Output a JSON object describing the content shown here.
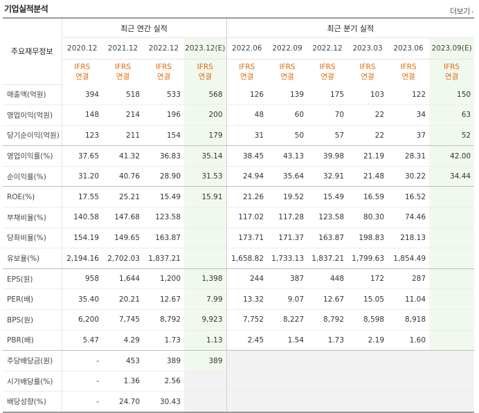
{
  "title": "기업실적분석",
  "more_label": "더보기",
  "header": {
    "row_label": "주요재무정보",
    "annual_group": "최근 연간 실적",
    "quarter_group": "최근 분기 실적",
    "annual_periods": [
      "2020.12",
      "2021.12",
      "2022.12",
      "2023.12(E)"
    ],
    "quarter_periods": [
      "2022.06",
      "2022.09",
      "2022.12",
      "2023.03",
      "2023.06",
      "2023.09(E)"
    ],
    "basis_top": "IFRS",
    "basis_bottom": "연결"
  },
  "rows": [
    {
      "label": "매출액(억원)",
      "values": [
        "394",
        "518",
        "533",
        "568",
        "126",
        "139",
        "175",
        "103",
        "122",
        "150"
      ]
    },
    {
      "label": "영업이익(억원)",
      "values": [
        "148",
        "214",
        "196",
        "200",
        "48",
        "60",
        "70",
        "22",
        "34",
        "63"
      ]
    },
    {
      "label": "당기순이익(억원)",
      "values": [
        "123",
        "211",
        "154",
        "179",
        "31",
        "50",
        "57",
        "22",
        "37",
        "52"
      ]
    },
    {
      "label": "영업이익률(%)",
      "values": [
        "37.65",
        "41.32",
        "36.83",
        "35.14",
        "38.45",
        "43.13",
        "39.98",
        "21.19",
        "28.31",
        "42.00"
      ]
    },
    {
      "label": "순이익률(%)",
      "values": [
        "31.20",
        "40.76",
        "28.90",
        "31.53",
        "24.94",
        "35.64",
        "32.91",
        "21.48",
        "30.22",
        "34.44"
      ]
    },
    {
      "label": "ROE(%)",
      "values": [
        "17.55",
        "25.21",
        "15.49",
        "15.91",
        "21.26",
        "19.52",
        "15.49",
        "16.59",
        "16.52",
        ""
      ]
    },
    {
      "label": "부채비율(%)",
      "values": [
        "140.58",
        "147.68",
        "123.58",
        "",
        "117.02",
        "117.28",
        "123.58",
        "80.30",
        "74.46",
        ""
      ]
    },
    {
      "label": "당좌비율(%)",
      "values": [
        "154.19",
        "149.65",
        "163.87",
        "",
        "173.71",
        "171.37",
        "163.87",
        "198.83",
        "218.13",
        ""
      ]
    },
    {
      "label": "유보율(%)",
      "values": [
        "2,194.16",
        "2,702.03",
        "1,837.21",
        "",
        "1,658.82",
        "1,733.13",
        "1,837.21",
        "1,799.63",
        "1,854.49",
        ""
      ]
    },
    {
      "label": "EPS(원)",
      "values": [
        "958",
        "1,644",
        "1,200",
        "1,398",
        "244",
        "387",
        "448",
        "172",
        "287",
        ""
      ]
    },
    {
      "label": "PER(배)",
      "values": [
        "35.40",
        "20.21",
        "12.67",
        "7.99",
        "13.32",
        "9.07",
        "12.67",
        "15.05",
        "11.04",
        ""
      ]
    },
    {
      "label": "BPS(원)",
      "values": [
        "6,200",
        "7,745",
        "8,792",
        "9,923",
        "7,752",
        "8,227",
        "8,792",
        "8,598",
        "8,918",
        ""
      ]
    },
    {
      "label": "PBR(배)",
      "values": [
        "5.47",
        "4.29",
        "1.73",
        "1.13",
        "2.45",
        "1.54",
        "1.73",
        "2.19",
        "1.60",
        ""
      ]
    },
    {
      "label": "주당배당금(원)",
      "values": [
        "-",
        "453",
        "389",
        "389",
        "",
        "",
        "",
        "",
        "",
        ""
      ]
    },
    {
      "label": "시가배당률(%)",
      "values": [
        "-",
        "1.36",
        "2.56",
        "",
        "",
        "",
        "",
        "",
        "",
        ""
      ]
    },
    {
      "label": "배당성향(%)",
      "values": [
        "-",
        "24.70",
        "30.43",
        "",
        "",
        "",
        "",
        "",
        "",
        ""
      ]
    }
  ],
  "colors": {
    "basis": "#e06b0d",
    "estimate_bg": "#f1f8ed",
    "empty_bg": "#f2f2f2"
  }
}
